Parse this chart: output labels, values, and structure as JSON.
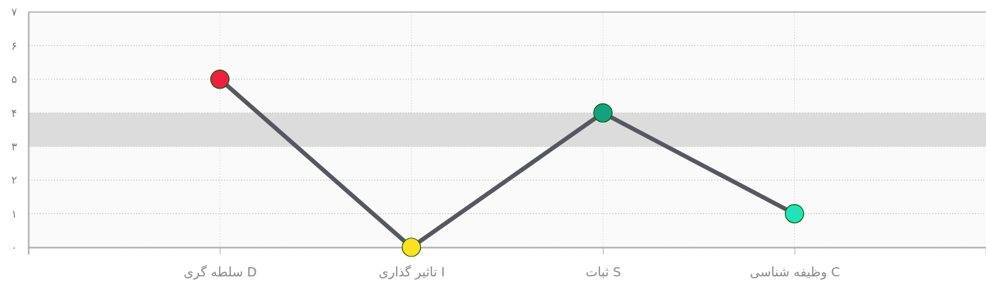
{
  "chart_data": {
    "type": "line",
    "categories": [
      "سلطه گری D",
      "تاثیر گذاری I",
      "ثبات S",
      "وظیفه شناسی C"
    ],
    "values": [
      5,
      0,
      4,
      1
    ],
    "color": "#55585f",
    "colors": [
      "#ee1f3c",
      "#fde01f",
      "#13a280",
      "#20e3b7"
    ],
    "marker": "circle",
    "line_style": "solid",
    "grid": true,
    "ylim": [
      0,
      7
    ],
    "yticks": [
      {
        "value": 0,
        "label": "۰"
      },
      {
        "value": 1,
        "label": "۱"
      },
      {
        "value": 2,
        "label": "۲"
      },
      {
        "value": 3,
        "label": "۳"
      },
      {
        "value": 4,
        "label": "۴"
      },
      {
        "value": 5,
        "label": "۵"
      },
      {
        "value": 6,
        "label": "۶"
      },
      {
        "value": 7,
        "label": "۷"
      }
    ],
    "bands": [
      {
        "axis": "y",
        "from": 3,
        "to": 4,
        "color": "#dcdcdc"
      }
    ]
  }
}
